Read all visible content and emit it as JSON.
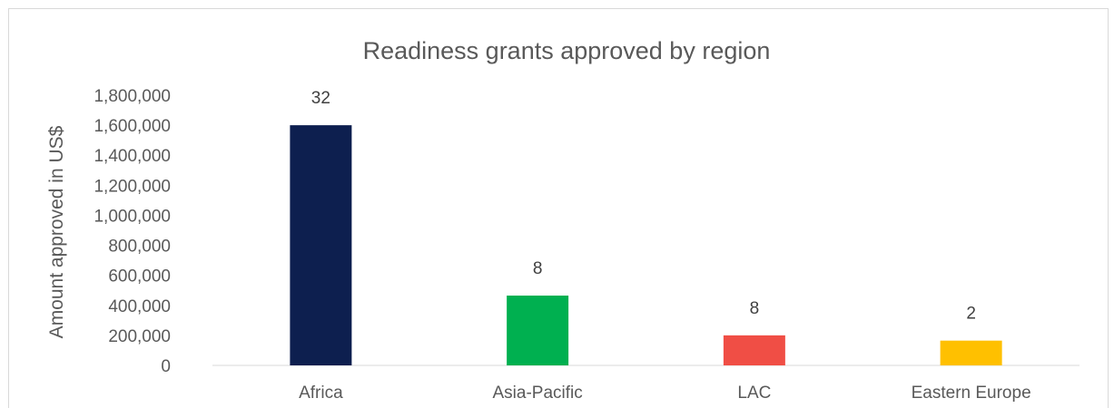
{
  "chart_data": {
    "type": "bar",
    "title": "Readiness grants approved by region",
    "xlabel": "",
    "ylabel": "Amount approved in US$",
    "categories": [
      "Africa",
      "Asia-Pacific",
      "LAC",
      "Eastern Europe"
    ],
    "values": [
      1600000,
      465000,
      200000,
      165000
    ],
    "data_labels": [
      "32",
      "8",
      "8",
      "2"
    ],
    "bar_colors": [
      "#0d1f4f",
      "#00b050",
      "#f04e45",
      "#ffc000"
    ],
    "ylim": [
      0,
      1800000
    ],
    "y_ticks": [
      0,
      200000,
      400000,
      600000,
      800000,
      1000000,
      1200000,
      1400000,
      1600000,
      1800000
    ],
    "y_tick_labels": [
      "0",
      "200,000",
      "400,000",
      "600,000",
      "800,000",
      "1,000,000",
      "1,200,000",
      "1,400,000",
      "1,600,000",
      "1,800,000"
    ],
    "grid": false,
    "legend": "none"
  }
}
